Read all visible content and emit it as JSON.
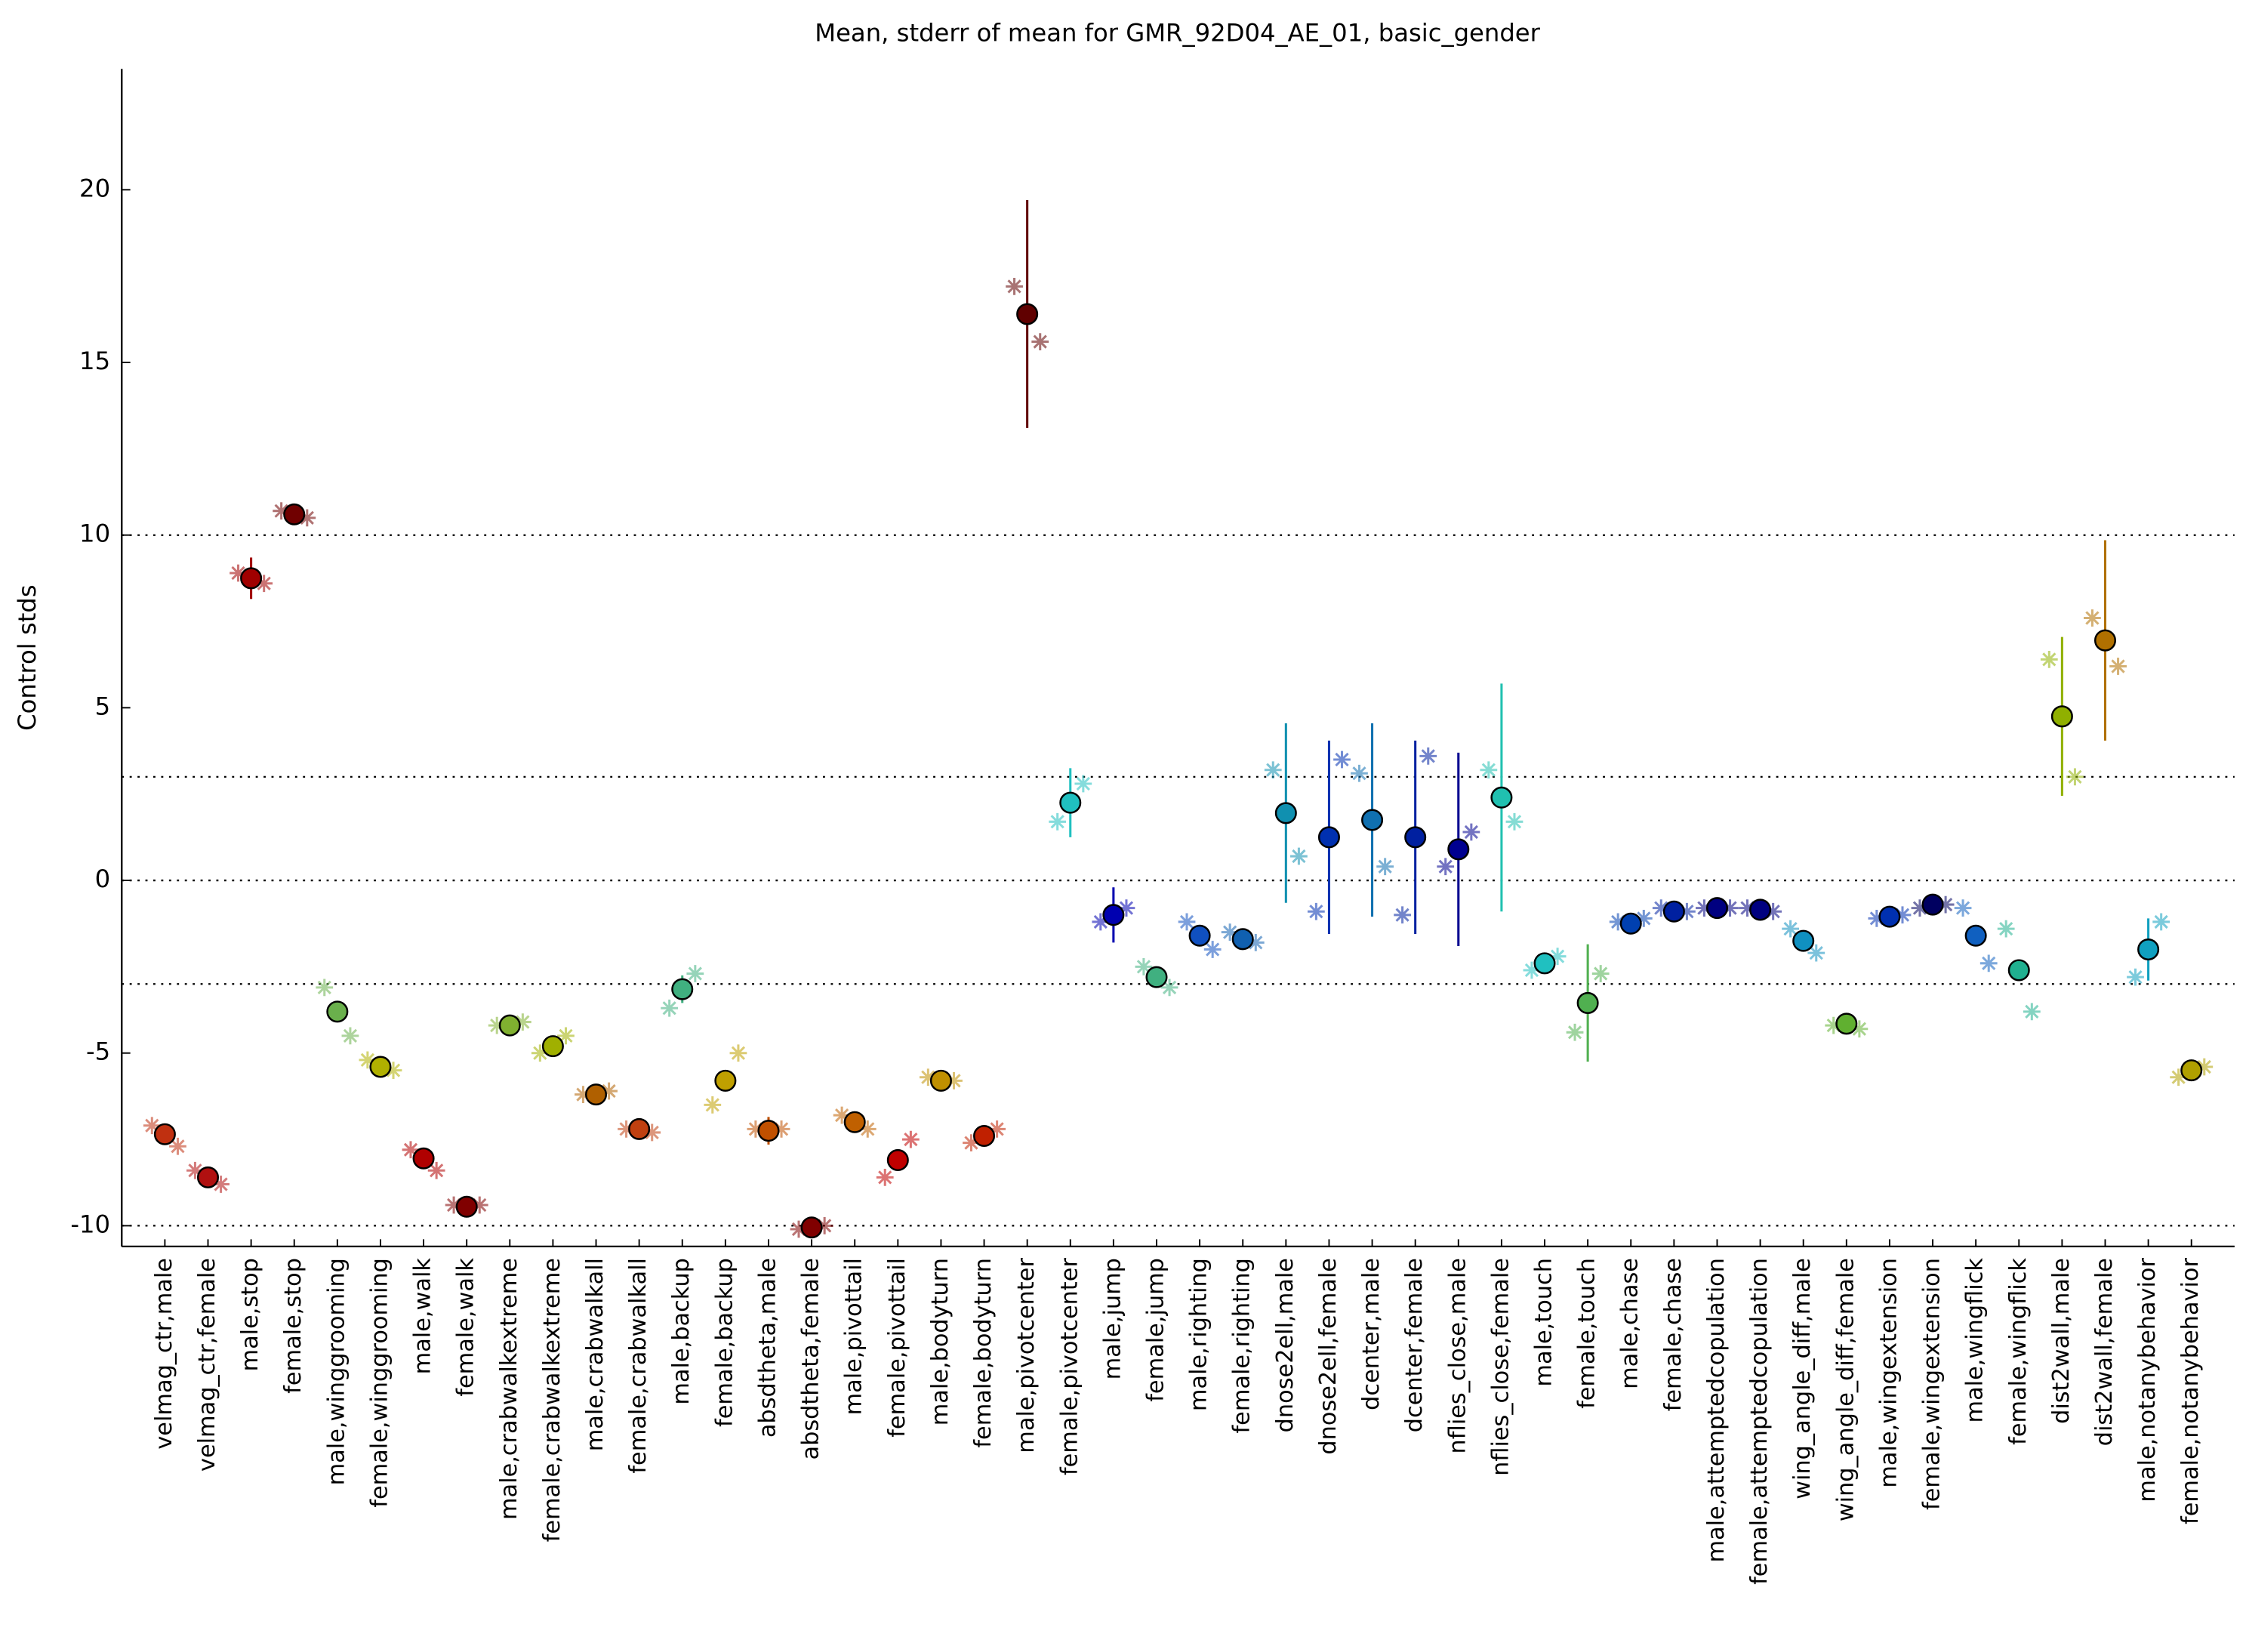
{
  "chart_data": {
    "type": "errorpoint",
    "title": "Mean, stderr of mean for GMR_92D04_AE_01, basic_gender",
    "y_label": "Control stds",
    "ylim": [
      -10.6,
      23.5
    ],
    "yticks": [
      -10,
      -5,
      0,
      5,
      10,
      15,
      20
    ],
    "ref_lines": [
      -10,
      -3,
      0,
      3,
      10
    ],
    "categories": [
      "velmag_ctr,male",
      "velmag_ctr,female",
      "male,stop",
      "female,stop",
      "male,winggrooming",
      "female,winggrooming",
      "male,walk",
      "female,walk",
      "male,crabwalkextreme",
      "female,crabwalkextreme",
      "male,crabwalkall",
      "female,crabwalkall",
      "male,backup",
      "female,backup",
      "absdtheta,male",
      "absdtheta,female",
      "male,pivottail",
      "female,pivottail",
      "male,bodyturn",
      "female,bodyturn",
      "male,pivotcenter",
      "female,pivotcenter",
      "male,jump",
      "female,jump",
      "male,righting",
      "female,righting",
      "dnose2ell,male",
      "dnose2ell,female",
      "dcenter,male",
      "dcenter,female",
      "nflies_close,male",
      "nflies_close,female",
      "male,touch",
      "female,touch",
      "male,chase",
      "female,chase",
      "male,attemptedcopulation",
      "female,attemptedcopulation",
      "wing_angle_diff,male",
      "wing_angle_diff,female",
      "male,wingextension",
      "female,wingextension",
      "male,wingflick",
      "female,wingflick",
      "dist2wall,male",
      "dist2wall,female",
      "male,notanybehavior",
      "female,notanybehavior"
    ],
    "colors": [
      "#c03010",
      "#b01010",
      "#a00000",
      "#700000",
      "#6ab04c",
      "#b0b000",
      "#b00000",
      "#800000",
      "#80b030",
      "#a0b000",
      "#b06000",
      "#c04010",
      "#40b080",
      "#c0a000",
      "#c05000",
      "#800000",
      "#c06000",
      "#c00000",
      "#c09000",
      "#c02000",
      "#600000",
      "#20c0c0",
      "#0000b0",
      "#40b080",
      "#1050c0",
      "#1060b0",
      "#1090b0",
      "#0030b0",
      "#1070b0",
      "#0020a0",
      "#000090",
      "#20c0b0",
      "#20c0c0",
      "#50b050",
      "#0040b0",
      "#0020a0",
      "#000080",
      "#000080",
      "#1090c0",
      "#60b030",
      "#0030b0",
      "#000060",
      "#1060c0",
      "#20b090",
      "#90b000",
      "#b07000",
      "#10a0c0",
      "#b0a000"
    ],
    "means": [
      -7.35,
      -8.6,
      8.75,
      10.6,
      -3.8,
      -5.4,
      -8.05,
      -9.45,
      -4.2,
      -4.8,
      -6.2,
      -7.2,
      -3.15,
      -5.8,
      -7.25,
      -10.05,
      -7.0,
      -8.1,
      -5.8,
      -7.4,
      16.4,
      2.25,
      -1.0,
      -2.8,
      -1.6,
      -1.7,
      1.95,
      1.25,
      1.75,
      1.25,
      0.9,
      2.4,
      -2.4,
      -3.55,
      -1.25,
      -0.9,
      -0.8,
      -0.85,
      -1.75,
      -4.15,
      -1.05,
      -0.7,
      -1.6,
      -2.6,
      4.75,
      6.95,
      -2.0,
      -5.5
    ],
    "stderr": [
      0.2,
      0.1,
      0.6,
      0.1,
      0.1,
      0.1,
      0.3,
      0.1,
      0.1,
      0.1,
      0.1,
      0.1,
      0.4,
      0.1,
      0.4,
      0.1,
      0.1,
      0.1,
      0.1,
      0.1,
      3.3,
      1.0,
      0.8,
      0.1,
      0.1,
      0.1,
      2.6,
      2.8,
      2.8,
      2.8,
      2.8,
      3.3,
      0.1,
      1.7,
      0.1,
      0.1,
      0.1,
      0.1,
      0.1,
      0.1,
      0.1,
      0.1,
      0.1,
      0.1,
      2.3,
      2.9,
      0.9,
      0.1
    ],
    "rep1": [
      -7.1,
      -8.4,
      8.9,
      10.7,
      -3.1,
      -5.2,
      -7.8,
      -9.4,
      -4.2,
      -5.0,
      -6.2,
      -7.2,
      -3.7,
      -6.5,
      -7.2,
      -10.1,
      -6.8,
      -8.6,
      -5.7,
      -7.6,
      17.2,
      1.7,
      -1.2,
      -2.5,
      -1.2,
      -1.5,
      3.2,
      -0.9,
      3.1,
      -1.0,
      0.4,
      3.2,
      -2.6,
      -4.4,
      -1.2,
      -0.8,
      -0.8,
      -0.8,
      -1.4,
      -4.2,
      -1.1,
      -0.8,
      -0.8,
      -1.4,
      6.4,
      7.6,
      -2.8,
      -5.7
    ],
    "rep2": [
      -7.7,
      -8.8,
      8.6,
      10.5,
      -4.5,
      -5.5,
      -8.4,
      -9.4,
      -4.1,
      -4.5,
      -6.1,
      -7.3,
      -2.7,
      -5.0,
      -7.2,
      -10.0,
      -7.2,
      -7.5,
      -5.8,
      -7.2,
      15.6,
      2.8,
      -0.8,
      -3.1,
      -2.0,
      -1.8,
      0.7,
      3.5,
      0.4,
      3.6,
      1.4,
      1.7,
      -2.2,
      -2.7,
      -1.1,
      -0.9,
      -0.8,
      -0.9,
      -2.1,
      -4.3,
      -1.0,
      -0.7,
      -2.4,
      -3.8,
      3.0,
      6.2,
      -1.2,
      -5.4
    ]
  }
}
